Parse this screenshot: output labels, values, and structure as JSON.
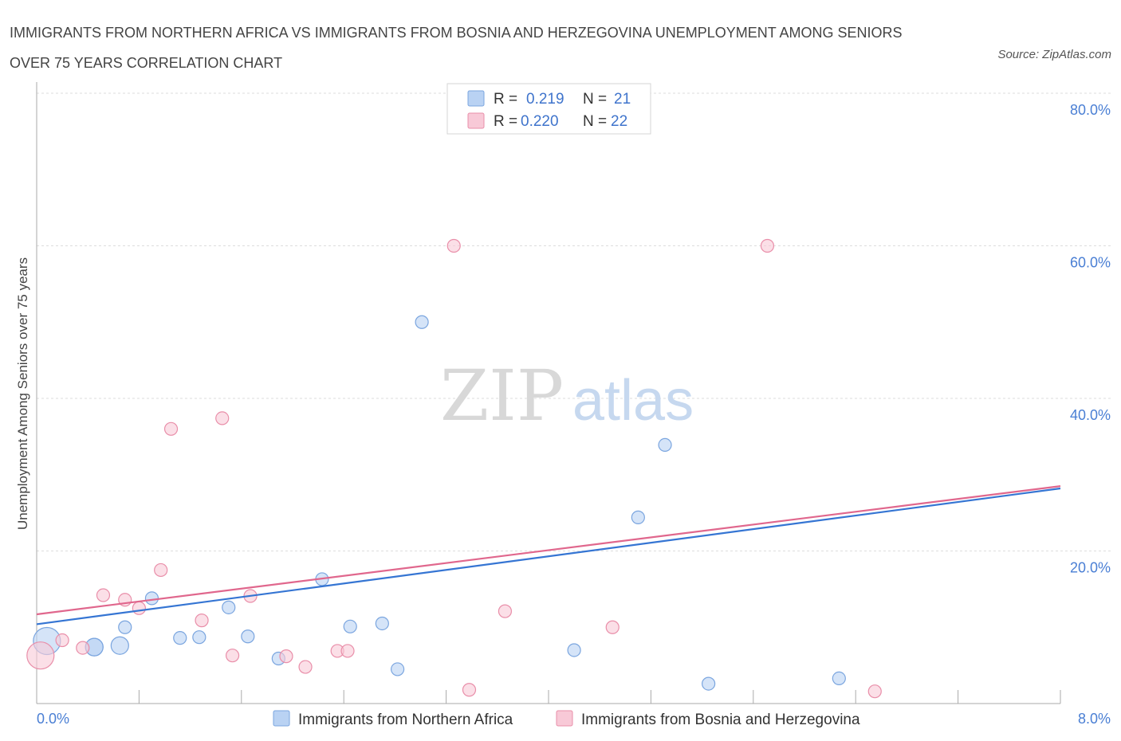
{
  "title_line1": "IMMIGRANTS FROM NORTHERN AFRICA VS IMMIGRANTS FROM BOSNIA AND HERZEGOVINA UNEMPLOYMENT AMONG SENIORS",
  "title_line2": "OVER 75 YEARS CORRELATION CHART",
  "source": "Source: ZipAtlas.com",
  "watermark": {
    "zip": "ZIP",
    "atlas": "atlas"
  },
  "colors": {
    "blue_fill": "#b9d2f3",
    "blue_stroke": "#7aa5df",
    "blue_line": "#3575d3",
    "pink_fill": "#f8c9d7",
    "pink_stroke": "#e98ea9",
    "pink_line": "#e0678d",
    "axis_text": "#4a7fd4",
    "grid": "#dddddd"
  },
  "legend": {
    "r_label": "R =",
    "n_label": "N =",
    "series": [
      {
        "r": "0.219",
        "n": "21"
      },
      {
        "r": "0.220",
        "n": "22"
      }
    ]
  },
  "chart_data": {
    "type": "scatter",
    "title": "IMMIGRANTS FROM NORTHERN AFRICA VS IMMIGRANTS FROM BOSNIA AND HERZEGOVINA UNEMPLOYMENT AMONG SENIORS OVER 75 YEARS CORRELATION CHART",
    "xlabel": "",
    "ylabel": "Unemployment Among Seniors over 75 years",
    "xlim": [
      0,
      8
    ],
    "ylim": [
      0,
      80
    ],
    "x_tick_labels": [
      "0.0%",
      "8.0%"
    ],
    "y_ticks": [
      20,
      40,
      60,
      80
    ],
    "y_tick_labels": [
      "20.0%",
      "40.0%",
      "60.0%",
      "80.0%"
    ],
    "grid": true,
    "legend_position": "top-center",
    "series": [
      {
        "name": "Immigrants from Northern Africa",
        "color": "blue",
        "trend": {
          "x": [
            0,
            8
          ],
          "y": [
            10.4,
            28.2
          ]
        },
        "points": [
          {
            "x": 0.08,
            "y": 8.2,
            "size": "large"
          },
          {
            "x": 0.45,
            "y": 7.4,
            "size": "medium"
          },
          {
            "x": 0.45,
            "y": 7.4,
            "size": "medium"
          },
          {
            "x": 0.65,
            "y": 7.6,
            "size": "medium"
          },
          {
            "x": 0.69,
            "y": 10.0,
            "size": "small"
          },
          {
            "x": 0.9,
            "y": 13.8,
            "size": "small"
          },
          {
            "x": 1.12,
            "y": 8.6,
            "size": "small"
          },
          {
            "x": 1.27,
            "y": 8.7,
            "size": "small"
          },
          {
            "x": 1.5,
            "y": 12.6,
            "size": "small"
          },
          {
            "x": 1.65,
            "y": 8.8,
            "size": "small"
          },
          {
            "x": 1.89,
            "y": 5.9,
            "size": "small"
          },
          {
            "x": 2.23,
            "y": 16.3,
            "size": "small"
          },
          {
            "x": 2.45,
            "y": 10.1,
            "size": "small"
          },
          {
            "x": 2.7,
            "y": 10.5,
            "size": "small"
          },
          {
            "x": 2.82,
            "y": 4.5,
            "size": "small"
          },
          {
            "x": 3.01,
            "y": 50.0,
            "size": "small"
          },
          {
            "x": 4.2,
            "y": 7.0,
            "size": "small"
          },
          {
            "x": 4.7,
            "y": 24.4,
            "size": "small"
          },
          {
            "x": 4.91,
            "y": 33.9,
            "size": "small"
          },
          {
            "x": 5.25,
            "y": 2.6,
            "size": "small"
          },
          {
            "x": 6.27,
            "y": 3.3,
            "size": "small"
          }
        ]
      },
      {
        "name": "Immigrants from Bosnia and Herzegovina",
        "color": "pink",
        "trend": {
          "x": [
            0,
            8
          ],
          "y": [
            11.7,
            28.5
          ]
        },
        "points": [
          {
            "x": 0.03,
            "y": 6.3,
            "size": "large"
          },
          {
            "x": 0.2,
            "y": 8.3,
            "size": "small"
          },
          {
            "x": 0.36,
            "y": 7.3,
            "size": "small"
          },
          {
            "x": 0.52,
            "y": 14.2,
            "size": "small"
          },
          {
            "x": 0.69,
            "y": 13.6,
            "size": "small"
          },
          {
            "x": 0.8,
            "y": 12.5,
            "size": "small"
          },
          {
            "x": 0.97,
            "y": 17.5,
            "size": "small"
          },
          {
            "x": 1.05,
            "y": 36.0,
            "size": "small"
          },
          {
            "x": 1.29,
            "y": 10.9,
            "size": "small"
          },
          {
            "x": 1.45,
            "y": 37.4,
            "size": "small"
          },
          {
            "x": 1.53,
            "y": 6.3,
            "size": "small"
          },
          {
            "x": 1.67,
            "y": 14.1,
            "size": "small"
          },
          {
            "x": 1.95,
            "y": 6.2,
            "size": "small"
          },
          {
            "x": 2.1,
            "y": 4.8,
            "size": "small"
          },
          {
            "x": 2.35,
            "y": 6.9,
            "size": "small"
          },
          {
            "x": 2.43,
            "y": 6.9,
            "size": "small"
          },
          {
            "x": 3.26,
            "y": 60.0,
            "size": "small"
          },
          {
            "x": 3.38,
            "y": 1.8,
            "size": "small"
          },
          {
            "x": 3.66,
            "y": 12.1,
            "size": "small"
          },
          {
            "x": 4.5,
            "y": 10.0,
            "size": "small"
          },
          {
            "x": 5.71,
            "y": 60.0,
            "size": "small"
          },
          {
            "x": 6.55,
            "y": 1.6,
            "size": "small"
          }
        ]
      }
    ]
  }
}
